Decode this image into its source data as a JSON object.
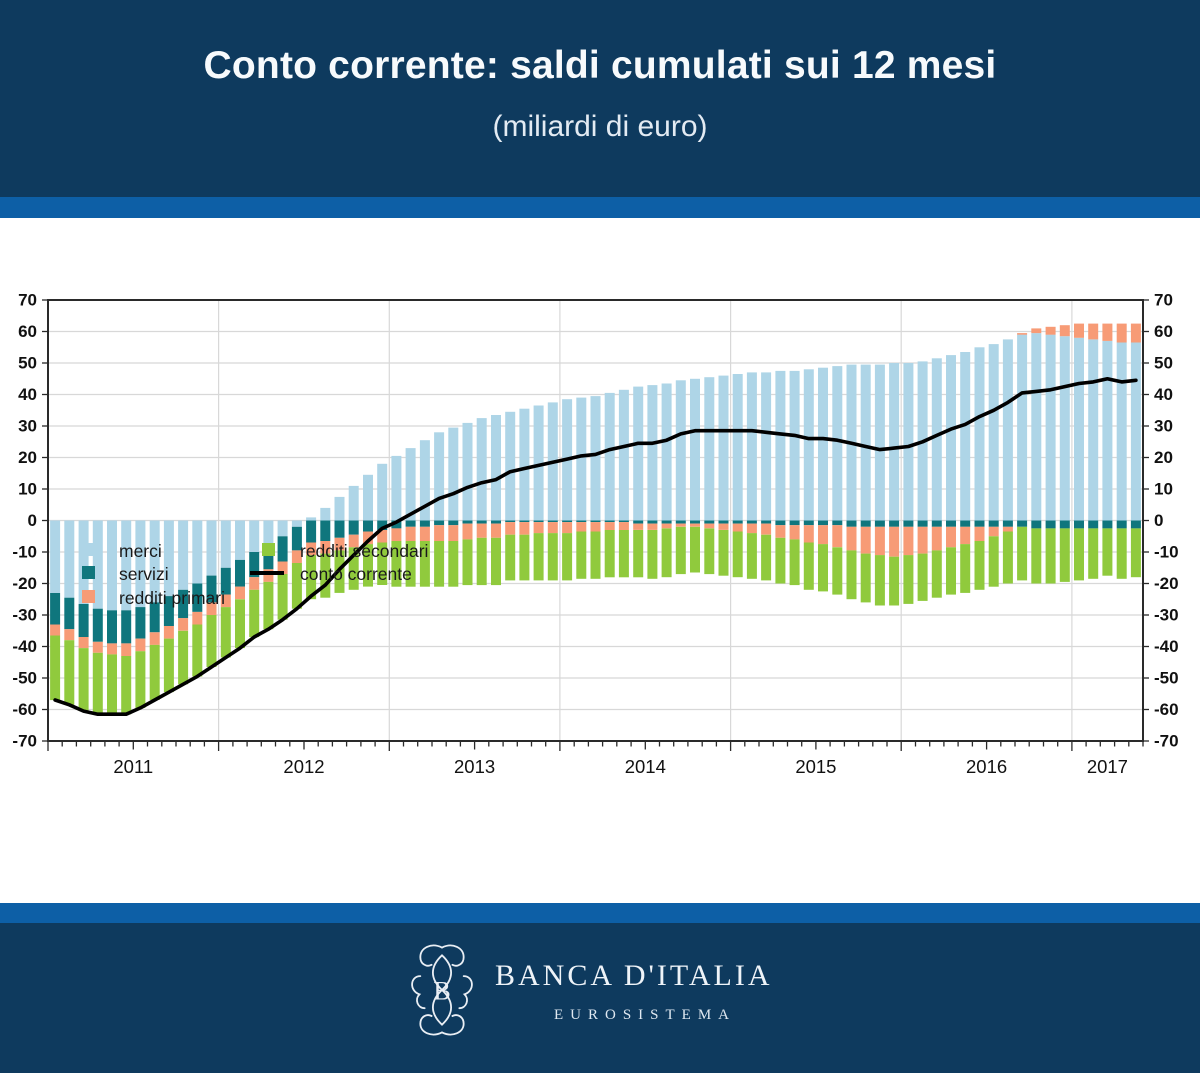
{
  "header": {
    "title": "Conto corrente: saldi cumulati sui 12 mesi",
    "subtitle": "(miliardi di euro)"
  },
  "footer": {
    "bank_name": "BANCA D'ITALIA",
    "tagline": "EUROSISTEMA"
  },
  "colors": {
    "banner_bg": "#0e3a5e",
    "stripe": "#0d5fa6",
    "merci": "#aed5e7",
    "servizi": "#0f767d",
    "redditi_primari": "#f79b76",
    "redditi_secondari": "#90ca3d",
    "line": "#000000",
    "grid": "#d8d8d8",
    "axis": "#2a2a2a",
    "tick_label": "#111111"
  },
  "chart_data": {
    "type": "stacked-bar+line",
    "title": "Conto corrente: saldi cumulati sui 12 mesi",
    "unit": "miliardi di euro",
    "x_start": "2011-01",
    "x_end": "2017-05",
    "x_year_labels": [
      "2011",
      "2012",
      "2013",
      "2014",
      "2015",
      "2016",
      "2017"
    ],
    "ylim": [
      -70,
      70
    ],
    "ytick_step": 10,
    "y_ticks": [
      70,
      60,
      50,
      40,
      30,
      20,
      10,
      0,
      -10,
      -20,
      -30,
      -40,
      -50,
      -60,
      -70
    ],
    "grid": "horizontal every 10, vertical at year boundaries",
    "legend_position": "top-left, two columns",
    "series": [
      {
        "name": "merci",
        "type": "bar",
        "color_key": "merci",
        "values": [
          -23,
          -24.5,
          -26.5,
          -28,
          -28.5,
          -28.5,
          -27.5,
          -26,
          -24,
          -22,
          -20,
          -17.5,
          -15,
          -12.5,
          -10,
          -7.5,
          -5,
          -2,
          1,
          4,
          7.5,
          11,
          14.5,
          18,
          20.5,
          23,
          25.5,
          28,
          29.5,
          31,
          32.5,
          33.5,
          34.5,
          35.5,
          36.5,
          37.5,
          38.5,
          39,
          39.5,
          40.5,
          41.5,
          42.5,
          43,
          43.5,
          44.5,
          45,
          45.5,
          46,
          46.5,
          47,
          47,
          47.5,
          47.5,
          48,
          48.5,
          49,
          49.5,
          49.5,
          49.5,
          50,
          50,
          50.5,
          51.5,
          52.5,
          53.5,
          55,
          56,
          57.5,
          59,
          59.5,
          59,
          58.5,
          58,
          57.5,
          57,
          56.5,
          56.5
        ]
      },
      {
        "name": "servizi",
        "type": "bar",
        "color_key": "servizi",
        "values": [
          -10,
          -10,
          -10.5,
          -10.5,
          -10.5,
          -10.5,
          -10,
          -9.5,
          -9.5,
          -9,
          -9,
          -8.5,
          -8.5,
          -8.5,
          -8,
          -8,
          -8,
          -7.5,
          -7,
          -6.5,
          -5.5,
          -4.5,
          -3.5,
          -3,
          -2.5,
          -2,
          -2,
          -1.5,
          -1.5,
          -1,
          -1,
          -1,
          -0.5,
          -0.5,
          -0.5,
          -0.5,
          -0.5,
          -0.5,
          -0.5,
          -0.5,
          -0.5,
          -1,
          -1,
          -1,
          -1,
          -1,
          -1,
          -1,
          -1,
          -1,
          -1,
          -1.5,
          -1.5,
          -1.5,
          -1.5,
          -1.5,
          -2,
          -2,
          -2,
          -2,
          -2,
          -2,
          -2,
          -2,
          -2,
          -2,
          -2,
          -2,
          -2,
          -2.5,
          -2.5,
          -2.5,
          -2.5,
          -2.5,
          -2.5,
          -2.5,
          -2.5
        ]
      },
      {
        "name": "redditi primari",
        "type": "bar",
        "color_key": "redditi_primari",
        "values": [
          -3.5,
          -3.5,
          -3.5,
          -3.5,
          -3.5,
          -4,
          -4,
          -4,
          -4,
          -4,
          -4,
          -4,
          -4,
          -4,
          -4,
          -4,
          -4,
          -4,
          -4,
          -4,
          -4,
          -4,
          -4,
          -4,
          -4,
          -4.5,
          -4.5,
          -5,
          -5,
          -5,
          -4.5,
          -4.5,
          -4,
          -4,
          -3.5,
          -3.5,
          -3.5,
          -3,
          -3,
          -2.5,
          -2.5,
          -2,
          -2,
          -1.5,
          -1,
          -1,
          -1.5,
          -2,
          -2.5,
          -3,
          -3.5,
          -4,
          -4.5,
          -5.5,
          -6,
          -7,
          -7.5,
          -8.5,
          -9,
          -9.5,
          -9,
          -8.5,
          -7.5,
          -6.5,
          -5.5,
          -4.5,
          -3,
          -1.5,
          0.5,
          1.5,
          2.5,
          3.5,
          4.5,
          5,
          5.5,
          6,
          6
        ]
      },
      {
        "name": "redditi secondari",
        "type": "bar",
        "color_key": "redditi_secondari",
        "values": [
          -20.5,
          -20.5,
          -20,
          -19.5,
          -19,
          -18.5,
          -18,
          -17.5,
          -17,
          -17,
          -16.5,
          -16.5,
          -16,
          -15.5,
          -15,
          -15,
          -14.5,
          -14.5,
          -14,
          -14,
          -13.5,
          -13.5,
          -13.5,
          -13.5,
          -14.5,
          -14.5,
          -14.5,
          -14.5,
          -14.5,
          -14.5,
          -15,
          -15,
          -14.5,
          -14.5,
          -15,
          -15,
          -15,
          -15,
          -15,
          -15,
          -15,
          -15,
          -15.5,
          -15.5,
          -15,
          -14.5,
          -14.5,
          -14.5,
          -14.5,
          -14.5,
          -14.5,
          -14.5,
          -14.5,
          -15,
          -15,
          -15,
          -15.5,
          -15.5,
          -16,
          -15.5,
          -15.5,
          -15,
          -15,
          -15,
          -15.5,
          -15.5,
          -16,
          -16.5,
          -17,
          -17.5,
          -17.5,
          -17,
          -16.5,
          -16,
          -15,
          -16,
          -15.5
        ]
      },
      {
        "name": "conto corrente",
        "type": "line",
        "color_key": "line",
        "values": [
          -57,
          -58.5,
          -60.5,
          -61.5,
          -61.5,
          -61.5,
          -59.5,
          -57,
          -54.5,
          -52,
          -49.5,
          -46.5,
          -43.5,
          -40.5,
          -37,
          -34.5,
          -31.5,
          -28,
          -24,
          -20.5,
          -15.5,
          -11,
          -6.5,
          -2.5,
          -0.5,
          2,
          4.5,
          7,
          8.5,
          10.5,
          12,
          13,
          15.5,
          16.5,
          17.5,
          18.5,
          19.5,
          20.5,
          21,
          22.5,
          23.5,
          24.5,
          24.5,
          25.5,
          27.5,
          28.5,
          28.5,
          28.5,
          28.5,
          28.5,
          28,
          27.5,
          27,
          26,
          26,
          25.5,
          24.5,
          23.5,
          22.5,
          23,
          23.5,
          25,
          27,
          29,
          30.5,
          33,
          35,
          37.5,
          40.5,
          41,
          41.5,
          42.5,
          43.5,
          44,
          45,
          44,
          44.5
        ]
      }
    ]
  }
}
